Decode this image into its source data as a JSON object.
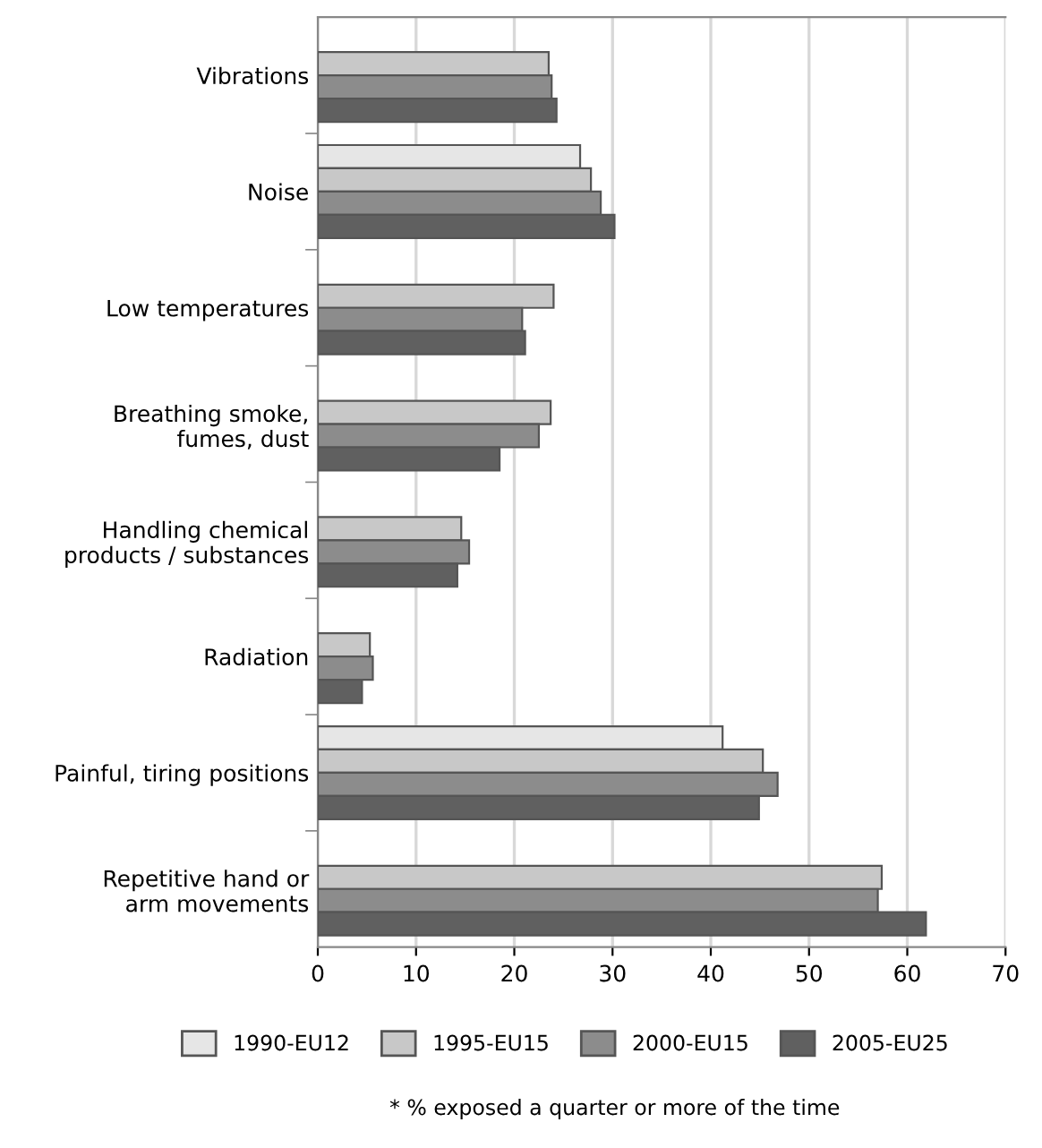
{
  "chart_data": {
    "type": "bar",
    "orientation": "horizontal",
    "categories": [
      "Vibrations",
      "Noise",
      "Low temperatures",
      "Breathing smoke,\nfumes, dust",
      "Handling chemical\nproducts / substances",
      "Radiation",
      "Painful, tiring positions",
      "Repetitive hand or\narm movements"
    ],
    "series": [
      {
        "name": "1990-EU12",
        "color": "#e6e6e6",
        "values": [
          null,
          26.7,
          null,
          null,
          null,
          null,
          41.2,
          null
        ]
      },
      {
        "name": "1995-EU15",
        "color": "#c8c8c8",
        "values": [
          23.5,
          27.8,
          24.0,
          23.7,
          14.6,
          5.3,
          45.3,
          57.4
        ]
      },
      {
        "name": "2000-EU15",
        "color": "#8c8c8c",
        "values": [
          23.8,
          28.8,
          20.8,
          22.5,
          15.4,
          5.6,
          46.8,
          57.0
        ]
      },
      {
        "name": "2005-EU25",
        "color": "#606060",
        "values": [
          24.3,
          30.2,
          21.1,
          18.5,
          14.2,
          4.5,
          44.9,
          61.9
        ]
      }
    ],
    "xlim": [
      0,
      70
    ],
    "xticks": [
      0,
      10,
      20,
      30,
      40,
      50,
      60,
      70
    ],
    "grid": "x",
    "legend": "bottom",
    "annotations": [
      "* % exposed a quarter or more of the time"
    ]
  }
}
